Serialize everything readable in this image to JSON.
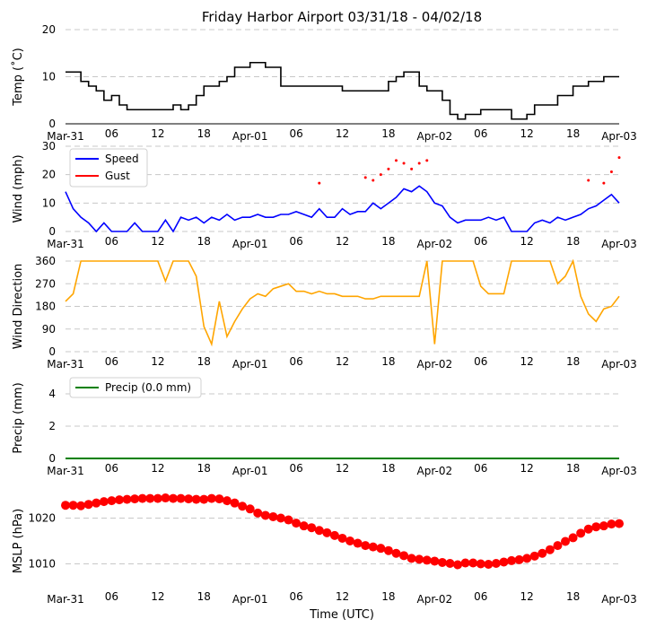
{
  "title": "Friday Harbor Airport 03/31/18 - 04/02/18",
  "xlabel": "Time (UTC)",
  "chart_data": [
    {
      "type": "line",
      "ylabel": "Temp (˚C)",
      "ylim": [
        0,
        20
      ],
      "yticks": [
        0,
        10,
        20
      ],
      "xticks": [
        "Mar-31",
        "06",
        "12",
        "18",
        "Apr-01",
        "06",
        "12",
        "18",
        "Apr-02",
        "06",
        "12",
        "18",
        "Apr-03"
      ],
      "grid": true,
      "series": [
        {
          "name": "Temp",
          "color": "#000000",
          "x": [
            0,
            1,
            2,
            3,
            4,
            5,
            6,
            7,
            8,
            10,
            12,
            14,
            15,
            16,
            17,
            18,
            19,
            20,
            21,
            22,
            23,
            24,
            25,
            26,
            28,
            30,
            32,
            34,
            36,
            38,
            40,
            41,
            42,
            43,
            44,
            45,
            46,
            47,
            48,
            49,
            50,
            51,
            52,
            53,
            54,
            55,
            56,
            58,
            60,
            61,
            62,
            63,
            64,
            66,
            68,
            70,
            71,
            72
          ],
          "values": [
            11,
            11,
            9,
            8,
            7,
            5,
            6,
            4,
            3,
            3,
            3,
            4,
            3,
            4,
            6,
            8,
            8,
            9,
            10,
            12,
            12,
            13,
            13,
            12,
            8,
            8,
            8,
            8,
            7,
            7,
            7,
            7,
            9,
            10,
            11,
            11,
            8,
            7,
            7,
            5,
            2,
            1,
            2,
            2,
            3,
            3,
            3,
            1,
            2,
            4,
            4,
            4,
            6,
            8,
            9,
            10,
            10,
            10
          ]
        }
      ]
    },
    {
      "type": "line",
      "ylabel": "Wind (mph)",
      "ylim": [
        0,
        30
      ],
      "yticks": [
        0,
        10,
        20,
        30
      ],
      "xticks": [
        "Mar-31",
        "06",
        "12",
        "18",
        "Apr-01",
        "06",
        "12",
        "18",
        "Apr-02",
        "06",
        "12",
        "18",
        "Apr-03"
      ],
      "legend": "top-left",
      "grid": true,
      "series": [
        {
          "name": "Speed",
          "color": "#0000ff",
          "x": [
            0,
            1,
            2,
            3,
            4,
            5,
            6,
            7,
            8,
            9,
            10,
            11,
            12,
            13,
            14,
            15,
            16,
            17,
            18,
            19,
            20,
            21,
            22,
            23,
            24,
            25,
            26,
            27,
            28,
            29,
            30,
            31,
            32,
            33,
            34,
            35,
            36,
            37,
            38,
            39,
            40,
            41,
            42,
            43,
            44,
            45,
            46,
            47,
            48,
            49,
            50,
            51,
            52,
            53,
            54,
            55,
            56,
            57,
            58,
            59,
            60,
            61,
            62,
            63,
            64,
            65,
            66,
            67,
            68,
            69,
            70,
            71,
            72
          ],
          "values": [
            14,
            8,
            5,
            3,
            0,
            3,
            0,
            0,
            0,
            3,
            0,
            0,
            0,
            4,
            0,
            5,
            4,
            5,
            3,
            5,
            4,
            6,
            4,
            5,
            5,
            6,
            5,
            5,
            6,
            6,
            7,
            6,
            5,
            8,
            5,
            5,
            8,
            6,
            7,
            7,
            10,
            8,
            10,
            12,
            15,
            14,
            16,
            14,
            10,
            9,
            5,
            3,
            4,
            4,
            4,
            5,
            4,
            5,
            0,
            0,
            0,
            3,
            4,
            3,
            5,
            4,
            5,
            6,
            8,
            9,
            11,
            13,
            10
          ]
        },
        {
          "name": "Gust",
          "color": "#ff0000",
          "x": [
            33,
            39,
            40,
            41,
            42,
            43,
            44,
            45,
            46,
            47,
            68,
            70,
            71,
            72
          ],
          "values": [
            17,
            19,
            18,
            20,
            22,
            25,
            24,
            22,
            24,
            25,
            18,
            17,
            21,
            26
          ]
        }
      ]
    },
    {
      "type": "line",
      "ylabel": "Wind Direction",
      "ylim": [
        0,
        360
      ],
      "yticks": [
        0,
        90,
        180,
        270,
        360
      ],
      "xticks": [
        "Mar-31",
        "06",
        "12",
        "18",
        "Apr-01",
        "06",
        "12",
        "18",
        "Apr-02",
        "06",
        "12",
        "18",
        "Apr-03"
      ],
      "grid": true,
      "series": [
        {
          "name": "Direction",
          "color": "#ffa500",
          "x": [
            0,
            1,
            2,
            3,
            4,
            5,
            6,
            7,
            8,
            9,
            10,
            11,
            12,
            13,
            14,
            15,
            16,
            17,
            18,
            19,
            20,
            21,
            22,
            23,
            24,
            25,
            26,
            27,
            28,
            29,
            30,
            31,
            32,
            33,
            34,
            35,
            36,
            37,
            38,
            39,
            40,
            41,
            42,
            43,
            44,
            45,
            46,
            47,
            48,
            49,
            50,
            51,
            52,
            53,
            54,
            55,
            56,
            57,
            58,
            59,
            60,
            61,
            62,
            63,
            64,
            65,
            66,
            67,
            68,
            69,
            70,
            71,
            72
          ],
          "values": [
            200,
            230,
            360,
            360,
            360,
            360,
            360,
            360,
            360,
            360,
            360,
            360,
            360,
            280,
            360,
            360,
            360,
            300,
            100,
            30,
            200,
            60,
            120,
            170,
            210,
            230,
            220,
            250,
            260,
            270,
            240,
            240,
            230,
            240,
            230,
            230,
            220,
            220,
            220,
            210,
            210,
            220,
            220,
            220,
            220,
            220,
            220,
            360,
            30,
            360,
            360,
            360,
            360,
            360,
            260,
            230,
            230,
            230,
            360,
            360,
            360,
            360,
            360,
            360,
            270,
            300,
            360,
            220,
            150,
            120,
            170,
            180,
            220
          ]
        }
      ]
    },
    {
      "type": "line",
      "ylabel": "Precip (mm)",
      "ylim": [
        0,
        5
      ],
      "yticks": [
        0,
        2,
        4
      ],
      "xticks": [
        "Mar-31",
        "06",
        "12",
        "18",
        "Apr-01",
        "06",
        "12",
        "18",
        "Apr-02",
        "06",
        "12",
        "18",
        "Apr-03"
      ],
      "legend": "top-left",
      "grid": true,
      "series": [
        {
          "name": "Precip (0.0 mm)",
          "color": "#008000",
          "x": [
            0,
            72
          ],
          "values": [
            0,
            0
          ]
        }
      ]
    },
    {
      "type": "scatter",
      "ylabel": "MSLP (hPa)",
      "ylim": [
        1005,
        1025
      ],
      "yticks": [
        1010,
        1020
      ],
      "xticks": [
        "Mar-31",
        "06",
        "12",
        "18",
        "Apr-01",
        "06",
        "12",
        "18",
        "Apr-02",
        "06",
        "12",
        "18",
        "Apr-03"
      ],
      "xlabel": "Time (UTC)",
      "grid": true,
      "series": [
        {
          "name": "MSLP",
          "color": "#ff0000",
          "x": [
            0,
            1,
            2,
            3,
            4,
            5,
            6,
            7,
            8,
            9,
            10,
            11,
            12,
            13,
            14,
            15,
            16,
            17,
            18,
            19,
            20,
            21,
            22,
            23,
            24,
            25,
            26,
            27,
            28,
            29,
            30,
            31,
            32,
            33,
            34,
            35,
            36,
            37,
            38,
            39,
            40,
            41,
            42,
            43,
            44,
            45,
            46,
            47,
            48,
            49,
            50,
            51,
            52,
            53,
            54,
            55,
            56,
            57,
            58,
            59,
            60,
            61,
            62,
            63,
            64,
            65,
            66,
            67,
            68,
            69,
            70,
            71,
            72
          ],
          "values": [
            1022.8,
            1022.8,
            1022.7,
            1023.0,
            1023.3,
            1023.6,
            1023.8,
            1024.0,
            1024.1,
            1024.2,
            1024.3,
            1024.3,
            1024.3,
            1024.4,
            1024.3,
            1024.3,
            1024.2,
            1024.1,
            1024.1,
            1024.3,
            1024.2,
            1023.8,
            1023.3,
            1022.6,
            1022.0,
            1021.1,
            1020.6,
            1020.3,
            1020.0,
            1019.6,
            1018.9,
            1018.3,
            1017.9,
            1017.3,
            1016.8,
            1016.2,
            1015.6,
            1015.0,
            1014.5,
            1014.0,
            1013.7,
            1013.4,
            1012.9,
            1012.3,
            1011.8,
            1011.2,
            1011.0,
            1010.8,
            1010.6,
            1010.3,
            1010.1,
            1009.8,
            1010.2,
            1010.2,
            1010.0,
            1009.9,
            1010.1,
            1010.4,
            1010.7,
            1010.9,
            1011.2,
            1011.7,
            1012.3,
            1013.1,
            1014.0,
            1014.9,
            1015.7,
            1016.7,
            1017.6,
            1018.1,
            1018.3,
            1018.7,
            1018.8
          ]
        }
      ]
    }
  ]
}
